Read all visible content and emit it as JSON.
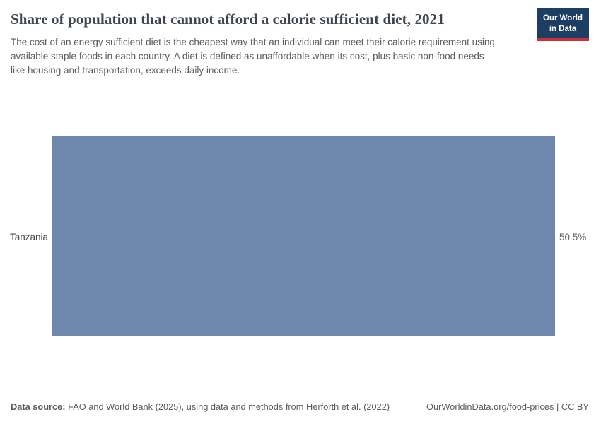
{
  "header": {
    "title": "Share of population that cannot afford a calorie sufficient diet, 2021",
    "subtitle": "The cost of an energy sufficient diet is the cheapest way that an individual can meet their calorie requirement using available staple foods in each country. A diet is defined as unaffordable when its cost, plus basic non-food needs like housing and transportation, exceeds daily income.",
    "logo": {
      "line1": "Our World",
      "line2": "in Data",
      "bg_color": "#1d3d63",
      "accent_color": "#c9303e"
    }
  },
  "chart_data": {
    "type": "bar",
    "orientation": "horizontal",
    "title": "Share of population that cannot afford a calorie sufficient diet, 2021",
    "year": "2021",
    "categories": [
      "Tanzania"
    ],
    "values": [
      50.5
    ],
    "value_labels": [
      "50.5%"
    ],
    "unit": "%",
    "xlim": [
      0,
      50.5
    ],
    "bar_color": "#6e87ad",
    "axis_line_color": "#dcdcdc",
    "grid": "off",
    "legend": "none"
  },
  "footer": {
    "source_label": "Data source:",
    "source_text": " FAO and World Bank (2025), using data and methods from Herforth et al. (2022)",
    "link_text": "OurWorldinData.org/food-prices | CC BY"
  }
}
